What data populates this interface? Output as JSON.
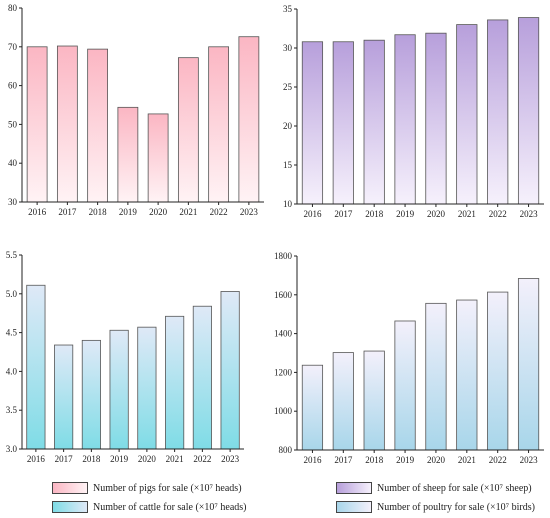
{
  "chart_data": [
    {
      "type": "bar",
      "categories": [
        "2016",
        "2017",
        "2018",
        "2019",
        "2020",
        "2021",
        "2022",
        "2023"
      ],
      "values": [
        70.0,
        70.2,
        69.4,
        54.4,
        52.7,
        67.2,
        70.0,
        72.6
      ],
      "ylim": [
        30,
        80
      ],
      "yticks": [
        30,
        40,
        50,
        60,
        70,
        80
      ],
      "legend": "Number of pigs for sale (×10⁷ heads)",
      "gradient": [
        "#fbb6c3",
        "#fff3f5"
      ]
    },
    {
      "type": "bar",
      "categories": [
        "2016",
        "2017",
        "2018",
        "2019",
        "2020",
        "2021",
        "2022",
        "2023"
      ],
      "values": [
        30.8,
        30.8,
        31.0,
        31.7,
        31.9,
        33.0,
        33.6,
        33.9
      ],
      "ylim": [
        10,
        35
      ],
      "yticks": [
        10,
        15,
        20,
        25,
        30,
        35
      ],
      "legend": "Number of sheep for sale (×10⁷ sheep)",
      "gradient": [
        "#b79fdb",
        "#f6f1fc"
      ]
    },
    {
      "type": "bar",
      "categories": [
        "2016",
        "2017",
        "2018",
        "2019",
        "2020",
        "2021",
        "2022",
        "2023"
      ],
      "values": [
        5.11,
        4.34,
        4.4,
        4.53,
        4.57,
        4.71,
        4.84,
        5.03
      ],
      "ylim": [
        3.0,
        5.5
      ],
      "yticks": [
        "3.0",
        "3.5",
        "4.0",
        "4.5",
        "5.0",
        "5.5"
      ],
      "legend": "Number of cattle for sale (×10⁷ heads)",
      "gradient": [
        "#dfe9f7",
        "#7fdce6"
      ]
    },
    {
      "type": "bar",
      "categories": [
        "2016",
        "2017",
        "2018",
        "2019",
        "2020",
        "2021",
        "2022",
        "2023"
      ],
      "values": [
        1237,
        1302,
        1310,
        1465,
        1556,
        1573,
        1614,
        1684
      ],
      "ylim": [
        800,
        1800
      ],
      "yticks": [
        800,
        1000,
        1200,
        1400,
        1600,
        1800
      ],
      "legend": "Number of poultry for sale (×10⁷ birds)",
      "gradient": [
        "#f3f0fb",
        "#a8d6ea"
      ]
    }
  ]
}
